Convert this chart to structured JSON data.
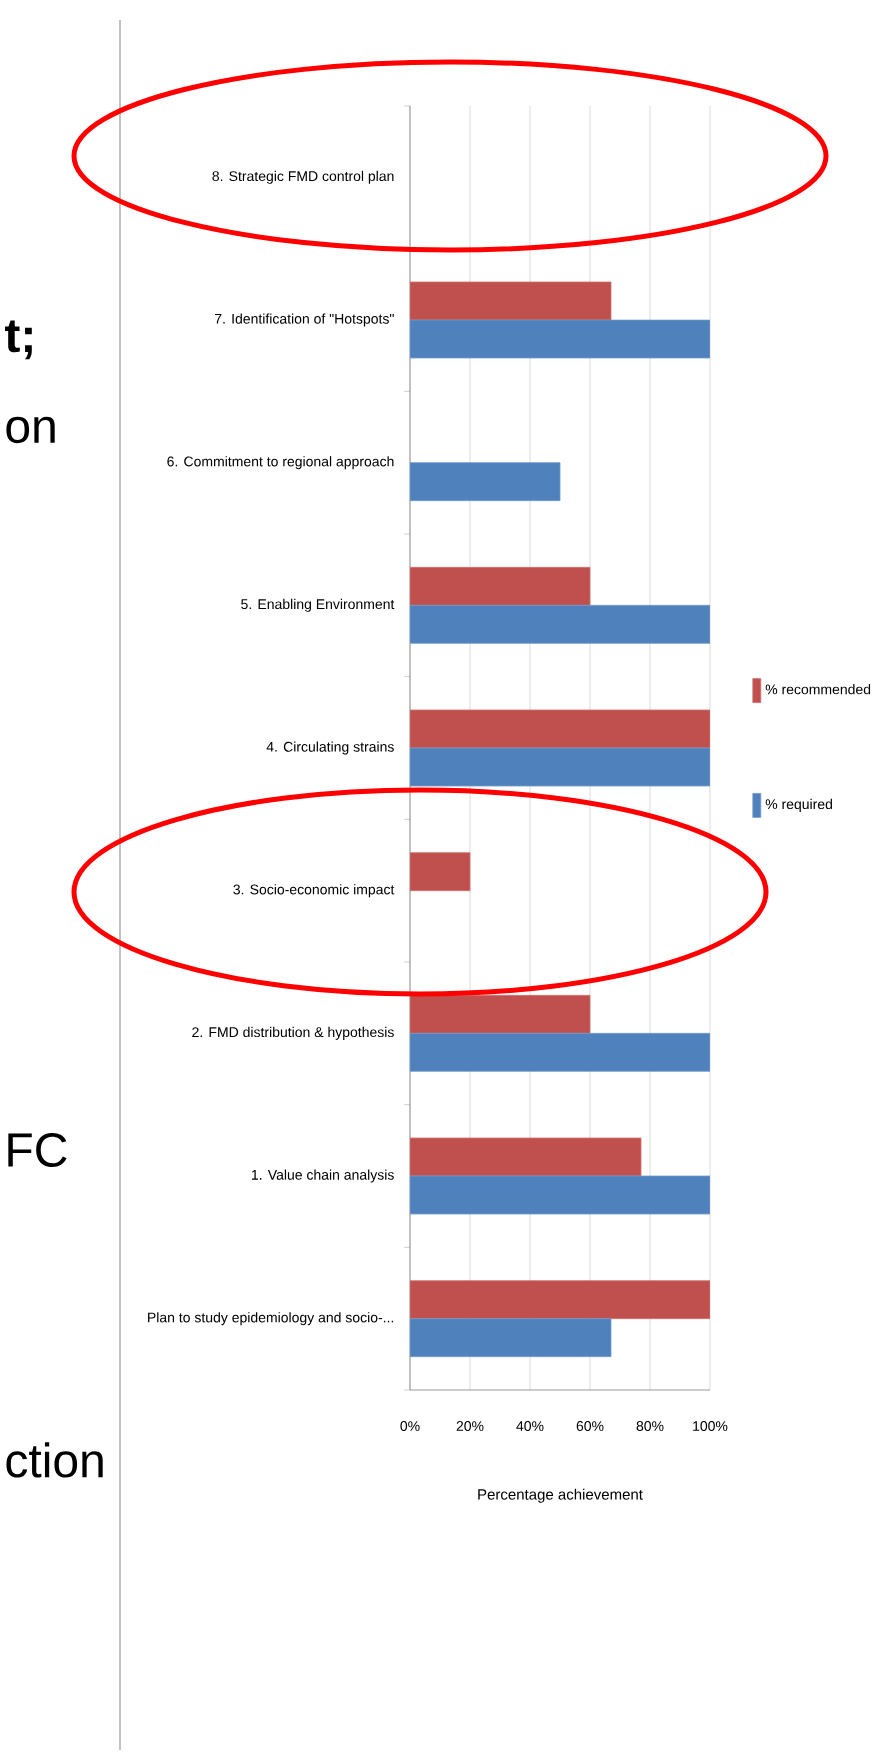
{
  "chart_data": {
    "type": "bar",
    "orientation": "horizontal",
    "xlabel": "Percentage achievement",
    "categories": [
      "8. Strategic FMD control plan",
      "7. Identification of \"Hotspots\"",
      "6. Commitment to regional approach",
      "5. Enabling Environment",
      "4. Circulating strains",
      "3. Socio-economic impact",
      "2. FMD distribution & hypothesis",
      "1. Value chain analysis",
      "Plan to study epidemiology and socio-..."
    ],
    "series": [
      {
        "name": "% recommended",
        "color": "#c0504d",
        "values": [
          null,
          67,
          null,
          60,
          100,
          20,
          60,
          77,
          100
        ]
      },
      {
        "name": "% required",
        "color": "#4f81bd",
        "values": [
          null,
          100,
          50,
          100,
          100,
          null,
          100,
          100,
          67
        ]
      }
    ],
    "xlim": [
      0,
      100
    ],
    "xticks": [
      {
        "value": 0,
        "label": "0%"
      },
      {
        "value": 20,
        "label": "20%"
      },
      {
        "value": 40,
        "label": "40%"
      },
      {
        "value": 60,
        "label": "60%"
      },
      {
        "value": 80,
        "label": "80%"
      },
      {
        "value": 100,
        "label": "100%"
      }
    ],
    "grid": "x",
    "legend": "right",
    "annotations": [
      "t;",
      "on",
      "FC",
      "ction"
    ]
  }
}
